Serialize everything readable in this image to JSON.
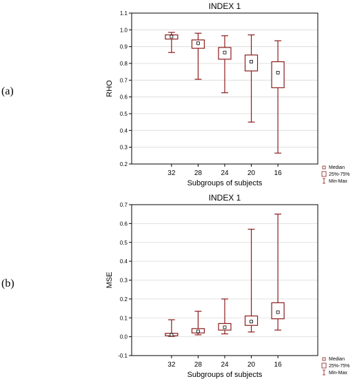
{
  "panel_labels": [
    "(a)",
    "(b)"
  ],
  "colors": {
    "box": "#8b1a1a",
    "grid": "#d9d9d9",
    "frame": "#000000"
  },
  "legend": {
    "median": "Median",
    "box": "25%-75%",
    "whisker": "Min-Max"
  },
  "chart_data": [
    {
      "type": "boxplot",
      "title": "INDEX 1",
      "xlabel": "Subgroups of subjects",
      "ylabel": "RHO",
      "ylim": [
        0.2,
        1.1
      ],
      "y_ticks": [
        0.2,
        0.3,
        0.4,
        0.5,
        0.6,
        0.7,
        0.8,
        0.9,
        1.0,
        1.1
      ],
      "y_tick_labels": [
        "0.2",
        "0.3",
        "0.4",
        "0.5",
        "0.6",
        "0.7",
        "0.8",
        "0.9",
        "1.0",
        "1.1"
      ],
      "grid": true,
      "legend_position": "bottom-right",
      "categories": [
        "32",
        "28",
        "24",
        "20",
        "16"
      ],
      "boxes": [
        {
          "min": 0.865,
          "q1": 0.945,
          "median": 0.96,
          "q3": 0.97,
          "max": 0.985
        },
        {
          "min": 0.705,
          "q1": 0.89,
          "median": 0.92,
          "q3": 0.94,
          "max": 0.98
        },
        {
          "min": 0.625,
          "q1": 0.825,
          "median": 0.865,
          "q3": 0.895,
          "max": 0.965
        },
        {
          "min": 0.45,
          "q1": 0.755,
          "median": 0.81,
          "q3": 0.85,
          "max": 0.97
        },
        {
          "min": 0.265,
          "q1": 0.655,
          "median": 0.745,
          "q3": 0.81,
          "max": 0.935
        }
      ]
    },
    {
      "type": "boxplot",
      "title": "INDEX 1",
      "xlabel": "Subgroups of subjects",
      "ylabel": "MSE",
      "ylim": [
        -0.1,
        0.7
      ],
      "y_ticks": [
        -0.1,
        0.0,
        0.1,
        0.2,
        0.3,
        0.4,
        0.5,
        0.6,
        0.7
      ],
      "y_tick_labels": [
        "-0.1",
        "0.0",
        "0.1",
        "0.2",
        "0.3",
        "0.4",
        "0.5",
        "0.6",
        "0.7"
      ],
      "grid": true,
      "legend_position": "bottom-right",
      "categories": [
        "32",
        "28",
        "24",
        "20",
        "16"
      ],
      "boxes": [
        {
          "min": 0.002,
          "q1": 0.005,
          "median": 0.01,
          "q3": 0.018,
          "max": 0.09
        },
        {
          "min": 0.01,
          "q1": 0.02,
          "median": 0.028,
          "q3": 0.043,
          "max": 0.135
        },
        {
          "min": 0.015,
          "q1": 0.035,
          "median": 0.05,
          "q3": 0.07,
          "max": 0.2
        },
        {
          "min": 0.025,
          "q1": 0.06,
          "median": 0.08,
          "q3": 0.11,
          "max": 0.57
        },
        {
          "min": 0.035,
          "q1": 0.095,
          "median": 0.13,
          "q3": 0.18,
          "max": 0.65
        }
      ]
    }
  ]
}
